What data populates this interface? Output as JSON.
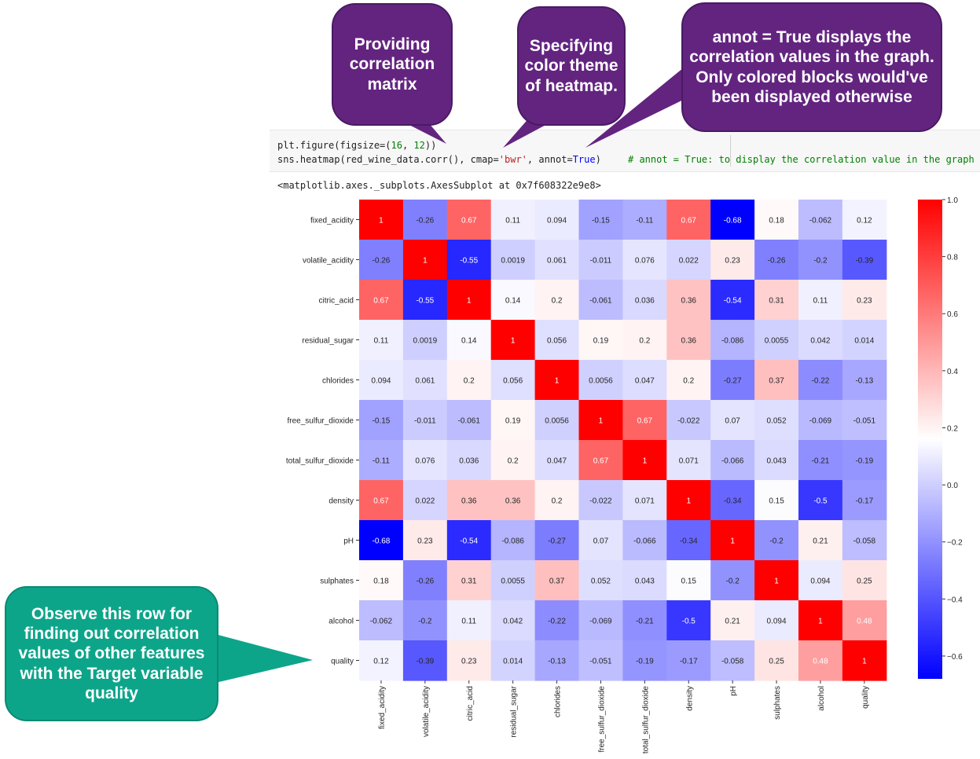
{
  "code": {
    "line1_prefix": "plt.figure(figsize=(",
    "line1_n1": "16",
    "line1_sep": ", ",
    "line1_n2": "12",
    "line1_suffix": "))",
    "line2_prefix": "sns.heatmap(red_wine_data.corr(), cmap=",
    "line2_str": "'bwr'",
    "line2_mid": ", annot=",
    "line2_kw": "True",
    "line2_suffix": ")",
    "comment": "# annot = True: to display the correlation value in the graph"
  },
  "output_text": "<matplotlib.axes._subplots.AxesSubplot at 0x7f608322e9e8>",
  "callouts": {
    "c1": "Providing correlation matrix",
    "c2": "Specifying color theme of heatmap.",
    "c3": "annot = True displays the correlation values in the graph. Only colored blocks would've been displayed otherwise",
    "c4": "Observe this row for finding out correlation values of other features with the Target variable quality"
  },
  "colors": {
    "callout_purple": "#632480",
    "callout_green": "#0da58a",
    "cmap": "bwr"
  },
  "chart_data": {
    "type": "heatmap",
    "colormap": "bwr",
    "vmin": -0.68,
    "vmax": 1.0,
    "labels": [
      "fixed_acidity",
      "volatile_acidity",
      "citric_acid",
      "residual_sugar",
      "chlorides",
      "free_sulfur_dioxide",
      "total_sulfur_dioxide",
      "density",
      "pH",
      "sulphates",
      "alcohol",
      "quality"
    ],
    "annotations": [
      [
        "1",
        "-0.26",
        "0.67",
        "0.11",
        "0.094",
        "-0.15",
        "-0.11",
        "0.67",
        "-0.68",
        "0.18",
        "-0.062",
        "0.12"
      ],
      [
        "-0.26",
        "1",
        "-0.55",
        "0.0019",
        "0.061",
        "-0.011",
        "0.076",
        "0.022",
        "0.23",
        "-0.26",
        "-0.2",
        "-0.39"
      ],
      [
        "0.67",
        "-0.55",
        "1",
        "0.14",
        "0.2",
        "-0.061",
        "0.036",
        "0.36",
        "-0.54",
        "0.31",
        "0.11",
        "0.23"
      ],
      [
        "0.11",
        "0.0019",
        "0.14",
        "1",
        "0.056",
        "0.19",
        "0.2",
        "0.36",
        "-0.086",
        "0.0055",
        "0.042",
        "0.014"
      ],
      [
        "0.094",
        "0.061",
        "0.2",
        "0.056",
        "1",
        "0.0056",
        "0.047",
        "0.2",
        "-0.27",
        "0.37",
        "-0.22",
        "-0.13"
      ],
      [
        "-0.15",
        "-0.011",
        "-0.061",
        "0.19",
        "0.0056",
        "1",
        "0.67",
        "-0.022",
        "0.07",
        "0.052",
        "-0.069",
        "-0.051"
      ],
      [
        "-0.11",
        "0.076",
        "0.036",
        "0.2",
        "0.047",
        "0.67",
        "1",
        "0.071",
        "-0.066",
        "0.043",
        "-0.21",
        "-0.19"
      ],
      [
        "0.67",
        "0.022",
        "0.36",
        "0.36",
        "0.2",
        "-0.022",
        "0.071",
        "1",
        "-0.34",
        "0.15",
        "-0.5",
        "-0.17"
      ],
      [
        "-0.68",
        "0.23",
        "-0.54",
        "-0.086",
        "-0.27",
        "0.07",
        "-0.066",
        "-0.34",
        "1",
        "-0.2",
        "0.21",
        "-0.058"
      ],
      [
        "0.18",
        "-0.26",
        "0.31",
        "0.0055",
        "0.37",
        "0.052",
        "0.043",
        "0.15",
        "-0.2",
        "1",
        "0.094",
        "0.25"
      ],
      [
        "-0.062",
        "-0.2",
        "0.11",
        "0.042",
        "-0.22",
        "-0.069",
        "-0.21",
        "-0.5",
        "0.21",
        "0.094",
        "1",
        "0.48"
      ],
      [
        "0.12",
        "-0.39",
        "0.23",
        "0.014",
        "-0.13",
        "-0.051",
        "-0.19",
        "-0.17",
        "-0.058",
        "0.25",
        "0.48",
        "1"
      ]
    ],
    "colorbar": {
      "ticks": [
        1.0,
        0.8,
        0.6,
        0.4,
        0.2,
        0.0,
        -0.2,
        -0.4,
        -0.6
      ],
      "tick_labels": [
        "1.0",
        "0.8",
        "0.6",
        "0.4",
        "0.2",
        "0.0",
        "−0.2",
        "−0.4",
        "−0.6"
      ]
    }
  }
}
